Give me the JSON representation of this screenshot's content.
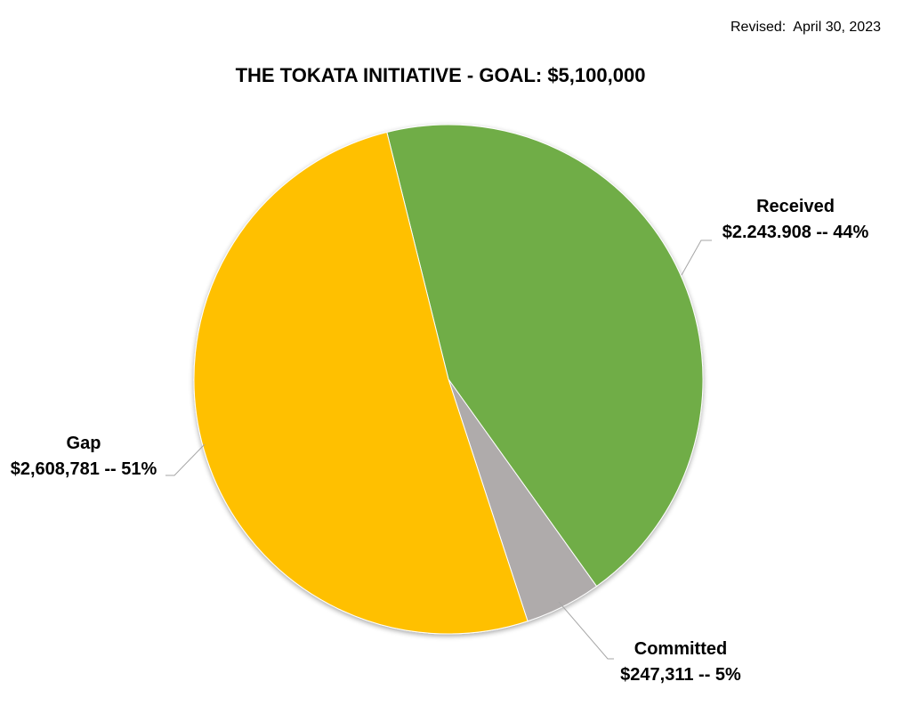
{
  "revised": {
    "label": "Revised:",
    "date": "April 30, 2023"
  },
  "colors": {
    "received": "#70AD47",
    "committed": "#AFABAB",
    "gap": "#FFC000",
    "leader": "#A6A6A6",
    "edge": "#FFFFFF"
  },
  "chart_data": {
    "type": "pie",
    "title": "THE TOKATA INITIATIVE - GOAL: $5,100,000",
    "slices": [
      {
        "key": "received",
        "name": "Received",
        "value": 2243908,
        "percent": 44,
        "label_value": "$2.243.908 -- 44%",
        "color": "#70AD47"
      },
      {
        "key": "committed",
        "name": "Committed",
        "value": 247311,
        "percent": 5,
        "label_value": "$247,311 -- 5%",
        "color": "#AFABAB"
      },
      {
        "key": "gap",
        "name": "Gap",
        "value": 2608781,
        "percent": 51,
        "label_value": "$2,608,781 -- 51%",
        "color": "#FFC000"
      }
    ]
  }
}
